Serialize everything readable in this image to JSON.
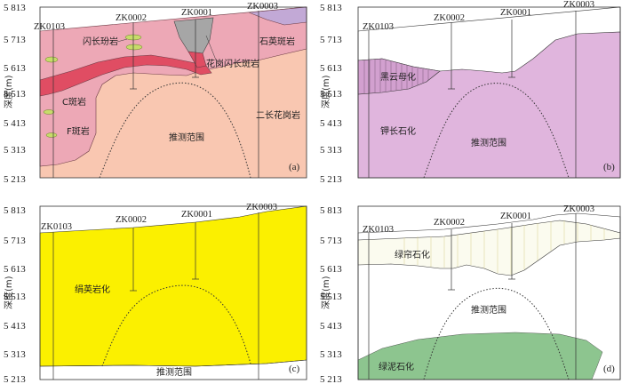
{
  "y_ticks": [
    "5 813",
    "5 713",
    "5 613",
    "5 513",
    "5 413",
    "5 313",
    "5 213"
  ],
  "y_axis_label": "深度(m)",
  "wells": [
    "ZK0103",
    "ZK0002",
    "ZK0001",
    "ZK0003"
  ],
  "panels": {
    "a": {
      "label": "(a)",
      "rocks": {
        "diorite_porphyrite": "闪长玢岩",
        "granodiorite_porphyry": "花岗闪长斑岩",
        "quartz_porphyry": "石英斑岩",
        "c_porphyry": "C斑岩",
        "f_porphyry": "F斑岩",
        "monzogranite": "二长花岗岩",
        "inferred_range": "推测范围"
      },
      "colors": {
        "host": "#eda8b6",
        "monzogranite": "#f9c7b1",
        "granodiorite": "#e04d63",
        "intrusion_gray": "#a6a6a6",
        "quartz_porphyry": "#c2a9d6",
        "lens": "#c7dc6a"
      }
    },
    "b": {
      "label": "(b)",
      "zones": {
        "biotite": "黑云母化",
        "potassic": "钾长石化",
        "inferred_range": "推测范围"
      },
      "color": "#e0b5dd"
    },
    "c": {
      "label": "(c)",
      "zones": {
        "phyllic": "绢英岩化",
        "inferred_range": "推测范围"
      },
      "color": "#fbf000"
    },
    "d": {
      "label": "(d)",
      "zones": {
        "sericite": "绿帘石化",
        "chlorite": "绿泥石化",
        "inferred_range": "推测范围"
      },
      "color": "#8dc58f"
    }
  }
}
